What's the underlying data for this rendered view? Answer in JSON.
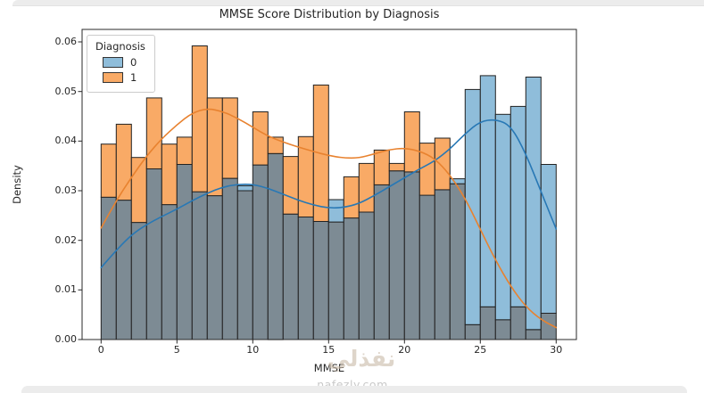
{
  "chart_data": {
    "type": "histogram",
    "title": "MMSE Score Distribution by Diagnosis",
    "xlabel": "MMSE",
    "ylabel": "Density",
    "xlim": [
      -1.25,
      31.3
    ],
    "ylim": [
      0,
      0.0625
    ],
    "x_ticks": [
      0,
      5,
      10,
      15,
      20,
      25,
      30
    ],
    "y_tick_labels": [
      "0.00",
      "0.01",
      "0.02",
      "0.03",
      "0.04",
      "0.05",
      "0.06"
    ],
    "grid": false,
    "bins": {
      "start": 0,
      "width": 1,
      "count": 30
    },
    "kde_x": {
      "start": 0,
      "step": 1,
      "count": 31
    },
    "edge_color": "#222222",
    "overlap_fill": "#7d8b94",
    "legend": {
      "title": "Diagnosis",
      "position": "upper left"
    },
    "series": [
      {
        "name": "0",
        "label": "0",
        "bar_fill": "#8fbdda",
        "kde_color": "#2878b5",
        "heights": [
          0.0287,
          0.0281,
          0.0236,
          0.0344,
          0.0272,
          0.0353,
          0.0298,
          0.029,
          0.0325,
          0.031,
          0.0352,
          0.0375,
          0.0253,
          0.0247,
          0.0238,
          0.0282,
          0.0245,
          0.0257,
          0.0312,
          0.034,
          0.0338,
          0.0291,
          0.0302,
          0.0324,
          0.0504,
          0.0532,
          0.0454,
          0.047,
          0.0529,
          0.0353
        ],
        "kde": [
          0.0145,
          0.018,
          0.0211,
          0.0232,
          0.0248,
          0.0263,
          0.028,
          0.0295,
          0.0307,
          0.0313,
          0.0313,
          0.0305,
          0.0293,
          0.0281,
          0.0271,
          0.0265,
          0.0266,
          0.0274,
          0.029,
          0.0308,
          0.0326,
          0.0344,
          0.036,
          0.0384,
          0.0415,
          0.044,
          0.0444,
          0.0432,
          0.0375,
          0.0298,
          0.0223
        ]
      },
      {
        "name": "1",
        "label": "1",
        "bar_fill": "#f9aa66",
        "kde_color": "#e8822f",
        "heights": [
          0.0394,
          0.0434,
          0.0367,
          0.0487,
          0.0394,
          0.0408,
          0.0592,
          0.0487,
          0.0487,
          0.03,
          0.0459,
          0.0408,
          0.0369,
          0.0409,
          0.0513,
          0.0237,
          0.0328,
          0.0355,
          0.0382,
          0.0355,
          0.0459,
          0.0396,
          0.0406,
          0.0314,
          0.003,
          0.0066,
          0.004,
          0.0066,
          0.002,
          0.0053
        ],
        "kde": [
          0.0225,
          0.028,
          0.0327,
          0.037,
          0.0405,
          0.0433,
          0.0457,
          0.0466,
          0.046,
          0.0446,
          0.0428,
          0.041,
          0.0398,
          0.0388,
          0.0379,
          0.0371,
          0.0366,
          0.0366,
          0.0374,
          0.0383,
          0.0386,
          0.038,
          0.0365,
          0.0332,
          0.0285,
          0.0222,
          0.016,
          0.0107,
          0.0066,
          0.004,
          0.0024
        ]
      }
    ]
  },
  "watermark": {
    "arabic_text": "نفذلي",
    "site_text": "nafezly.com"
  }
}
